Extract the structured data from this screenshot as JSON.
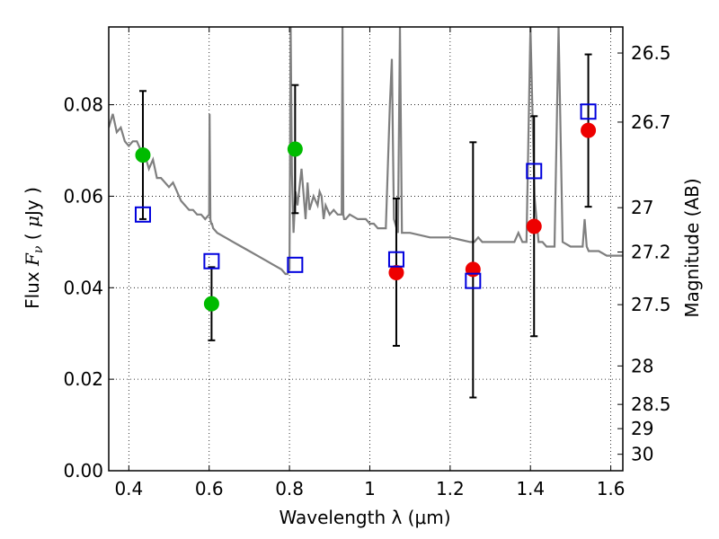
{
  "chart_data": {
    "type": "scatter",
    "xlabel": "Wavelength  λ (μm)",
    "ylabel": "Flux  F_ν  ( μJy )",
    "ylabel_right": "Magnitude (AB)",
    "xlim": [
      0.35,
      1.63
    ],
    "ylim": [
      0.0,
      0.097
    ],
    "grid": true,
    "x_ticks": [
      0.4,
      0.6,
      0.8,
      1.0,
      1.2,
      1.4,
      1.6
    ],
    "x_tick_labels": [
      "0.4",
      "0.6",
      "0.8",
      "1",
      "1.2",
      "1.4",
      "1.6"
    ],
    "y_ticks": [
      0.0,
      0.02,
      0.04,
      0.06,
      0.08
    ],
    "y_tick_labels": [
      "0.00",
      "0.02",
      "0.04",
      "0.06",
      "0.08"
    ],
    "right_ticks": [
      {
        "flux": 0.0913,
        "label": "26.5"
      },
      {
        "flux": 0.0762,
        "label": "26.7"
      },
      {
        "flux": 0.0575,
        "label": "27"
      },
      {
        "flux": 0.0478,
        "label": "27.2"
      },
      {
        "flux": 0.0363,
        "label": "27.5"
      },
      {
        "flux": 0.0229,
        "label": "28"
      },
      {
        "flux": 0.0145,
        "label": "28.5"
      },
      {
        "flux": 0.0092,
        "label": "29"
      },
      {
        "flux": 0.0036,
        "label": "30"
      }
    ],
    "series": [
      {
        "marker": "circle",
        "color": "#00bb00",
        "points": [
          {
            "x": 0.435,
            "y": 0.069,
            "yerr_low": 0.055,
            "yerr_high": 0.083
          },
          {
            "x": 0.606,
            "y": 0.0365,
            "yerr_low": 0.0285,
            "yerr_high": 0.0445
          },
          {
            "x": 0.814,
            "y": 0.0703,
            "yerr_low": 0.0563,
            "yerr_high": 0.0843
          }
        ]
      },
      {
        "marker": "circle",
        "color": "#ee0000",
        "points": [
          {
            "x": 1.066,
            "y": 0.0433,
            "yerr_low": 0.0273,
            "yerr_high": 0.0595
          },
          {
            "x": 1.257,
            "y": 0.044,
            "yerr_low": 0.016,
            "yerr_high": 0.0718
          },
          {
            "x": 1.409,
            "y": 0.0534,
            "yerr_low": 0.0294,
            "yerr_high": 0.0775
          },
          {
            "x": 1.544,
            "y": 0.0744,
            "yerr_low": 0.0577,
            "yerr_high": 0.091
          }
        ]
      },
      {
        "marker": "open-square",
        "color": "#0000dd",
        "points": [
          {
            "x": 0.435,
            "y": 0.056
          },
          {
            "x": 0.606,
            "y": 0.0458
          },
          {
            "x": 0.814,
            "y": 0.045
          },
          {
            "x": 1.066,
            "y": 0.0462
          },
          {
            "x": 1.257,
            "y": 0.0415
          },
          {
            "x": 1.409,
            "y": 0.0655
          },
          {
            "x": 1.544,
            "y": 0.0785
          }
        ]
      }
    ],
    "model_spectrum": {
      "color": "#7f7f7f",
      "x": [
        0.35,
        0.36,
        0.37,
        0.38,
        0.39,
        0.4,
        0.41,
        0.42,
        0.43,
        0.44,
        0.45,
        0.46,
        0.47,
        0.48,
        0.49,
        0.5,
        0.51,
        0.52,
        0.53,
        0.54,
        0.55,
        0.56,
        0.57,
        0.58,
        0.59,
        0.6,
        0.601,
        0.603,
        0.605,
        0.607,
        0.61,
        0.62,
        0.64,
        0.66,
        0.68,
        0.7,
        0.72,
        0.74,
        0.76,
        0.78,
        0.79,
        0.795,
        0.8,
        0.803,
        0.806,
        0.81,
        0.815,
        0.82,
        0.83,
        0.84,
        0.845,
        0.85,
        0.86,
        0.87,
        0.875,
        0.88,
        0.885,
        0.89,
        0.9,
        0.91,
        0.92,
        0.93,
        0.932,
        0.934,
        0.936,
        0.94,
        0.95,
        0.97,
        0.99,
        1.0,
        1.01,
        1.02,
        1.03,
        1.04,
        1.05,
        1.055,
        1.06,
        1.07,
        1.075,
        1.08,
        1.09,
        1.1,
        1.15,
        1.2,
        1.25,
        1.26,
        1.27,
        1.28,
        1.3,
        1.32,
        1.34,
        1.36,
        1.37,
        1.38,
        1.39,
        1.4,
        1.41,
        1.42,
        1.43,
        1.44,
        1.45,
        1.46,
        1.47,
        1.48,
        1.5,
        1.52,
        1.53,
        1.535,
        1.54,
        1.545,
        1.55,
        1.57,
        1.59,
        1.61,
        1.63
      ],
      "y": [
        0.075,
        0.078,
        0.074,
        0.075,
        0.072,
        0.071,
        0.072,
        0.072,
        0.07,
        0.069,
        0.066,
        0.068,
        0.064,
        0.064,
        0.063,
        0.062,
        0.063,
        0.061,
        0.059,
        0.058,
        0.057,
        0.057,
        0.056,
        0.056,
        0.055,
        0.056,
        0.078,
        0.055,
        0.054,
        0.054,
        0.053,
        0.052,
        0.051,
        0.05,
        0.049,
        0.048,
        0.047,
        0.046,
        0.045,
        0.044,
        0.043,
        0.043,
        0.044,
        0.097,
        0.065,
        0.052,
        0.061,
        0.058,
        0.066,
        0.055,
        0.063,
        0.057,
        0.06,
        0.058,
        0.061,
        0.06,
        0.055,
        0.058,
        0.056,
        0.057,
        0.056,
        0.056,
        0.097,
        0.056,
        0.055,
        0.055,
        0.056,
        0.055,
        0.055,
        0.054,
        0.054,
        0.053,
        0.053,
        0.053,
        0.08,
        0.09,
        0.055,
        0.052,
        0.097,
        0.052,
        0.052,
        0.052,
        0.051,
        0.051,
        0.05,
        0.05,
        0.051,
        0.05,
        0.05,
        0.05,
        0.05,
        0.05,
        0.052,
        0.05,
        0.05,
        0.097,
        0.06,
        0.05,
        0.05,
        0.049,
        0.049,
        0.049,
        0.097,
        0.05,
        0.049,
        0.049,
        0.049,
        0.055,
        0.049,
        0.048,
        0.048,
        0.048,
        0.047,
        0.047,
        0.047
      ]
    }
  }
}
